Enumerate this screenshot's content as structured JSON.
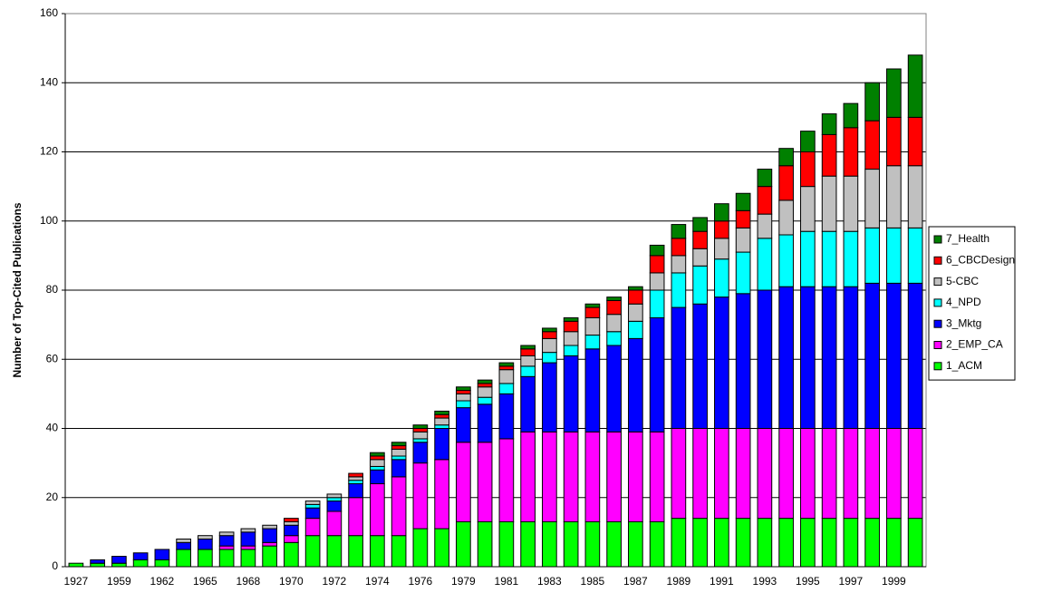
{
  "chart_data": {
    "type": "stacked-bar",
    "y_label": "Number of Top-Cited Publications",
    "categories": [
      "1927",
      null,
      "1959",
      null,
      "1962",
      null,
      "1965",
      null,
      "1968",
      null,
      "1970",
      null,
      "1972",
      null,
      "1974",
      null,
      "1976",
      null,
      "1979",
      null,
      "1981",
      null,
      "1983",
      null,
      "1985",
      null,
      "1987",
      null,
      "1989",
      null,
      "1991",
      null,
      "1993",
      null,
      "1995",
      null,
      "1997",
      null,
      "1999",
      null
    ],
    "series": [
      {
        "name": "1_ACM",
        "color": "#00ff00",
        "values": [
          1,
          1,
          1,
          2,
          2,
          5,
          5,
          5,
          5,
          6,
          7,
          9,
          9,
          9,
          9,
          9,
          11,
          11,
          13,
          13,
          13,
          13,
          13,
          13,
          13,
          13,
          13,
          13,
          14,
          14,
          14,
          14,
          14,
          14,
          14,
          14,
          14,
          14,
          14,
          14
        ]
      },
      {
        "name": "2_EMP_CA",
        "color": "#ff00ff",
        "values": [
          0,
          0,
          0,
          0,
          0,
          0,
          0,
          1,
          1,
          1,
          2,
          5,
          7,
          11,
          15,
          17,
          19,
          20,
          23,
          23,
          24,
          26,
          26,
          26,
          26,
          26,
          26,
          26,
          26,
          26,
          26,
          26,
          26,
          26,
          26,
          26,
          26,
          26,
          26,
          26
        ]
      },
      {
        "name": "3_Mktg",
        "color": "#0000ff",
        "values": [
          0,
          1,
          2,
          2,
          3,
          2,
          3,
          3,
          4,
          4,
          3,
          3,
          3,
          4,
          4,
          5,
          6,
          9,
          10,
          11,
          13,
          16,
          20,
          22,
          24,
          25,
          27,
          33,
          35,
          36,
          38,
          39,
          40,
          41,
          41,
          41,
          41,
          42,
          42,
          42
        ]
      },
      {
        "name": "4_NPD",
        "color": "#00ffff",
        "values": [
          0,
          0,
          0,
          0,
          0,
          0,
          0,
          0,
          0,
          0,
          0,
          1,
          1,
          1,
          1,
          1,
          1,
          1,
          2,
          2,
          3,
          3,
          3,
          3,
          4,
          4,
          5,
          8,
          10,
          11,
          11,
          12,
          15,
          15,
          16,
          16,
          16,
          16,
          16,
          16
        ]
      },
      {
        "name": "5-CBC",
        "color": "#c0c0c0",
        "values": [
          0,
          0,
          0,
          0,
          0,
          1,
          1,
          1,
          1,
          1,
          1,
          1,
          1,
          1,
          2,
          2,
          2,
          2,
          2,
          3,
          4,
          3,
          4,
          4,
          5,
          5,
          5,
          5,
          5,
          5,
          6,
          7,
          7,
          10,
          13,
          16,
          16,
          17,
          18,
          18
        ]
      },
      {
        "name": "6_CBCDesign",
        "color": "#ff0000",
        "values": [
          0,
          0,
          0,
          0,
          0,
          0,
          0,
          0,
          0,
          0,
          1,
          0,
          0,
          1,
          1,
          1,
          1,
          1,
          1,
          1,
          1,
          2,
          2,
          3,
          3,
          4,
          4,
          5,
          5,
          5,
          5,
          5,
          8,
          10,
          10,
          12,
          14,
          14,
          14,
          14
        ]
      },
      {
        "name": "7_Health",
        "color": "#008000",
        "values": [
          0,
          0,
          0,
          0,
          0,
          0,
          0,
          0,
          0,
          0,
          0,
          0,
          0,
          0,
          1,
          1,
          1,
          1,
          1,
          1,
          1,
          1,
          1,
          1,
          1,
          1,
          1,
          3,
          4,
          4,
          5,
          5,
          5,
          5,
          6,
          6,
          7,
          11,
          14,
          18
        ]
      }
    ],
    "ylim": [
      0,
      160
    ],
    "yticks": [
      0,
      20,
      40,
      60,
      80,
      100,
      120,
      140,
      160
    ],
    "grid": true,
    "legend": "right"
  }
}
